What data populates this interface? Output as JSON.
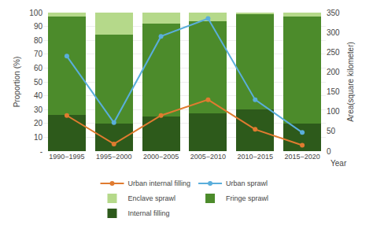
{
  "chart_data": {
    "type": "bar",
    "stacked": true,
    "categories": [
      "1990−1995",
      "1995−2000",
      "2000−2005",
      "2005−2010",
      "2010−2015",
      "2015−2020"
    ],
    "xlabel": "Year",
    "ylabel": "Proportion (%)",
    "y2label": "Area(square kilometer)",
    "ylim": [
      0,
      100
    ],
    "yticks": [
      {
        "value": 0,
        "label": "-"
      },
      10,
      20,
      30,
      40,
      50,
      60,
      70,
      80,
      90,
      100
    ],
    "y2lim": [
      0,
      350
    ],
    "y2ticks": [
      0,
      50,
      100,
      150,
      200,
      250,
      300,
      350
    ],
    "grid": true,
    "legend": "bottom",
    "series": [
      {
        "name": "Internal filling",
        "type": "bar",
        "color": "#2d5a1b",
        "values": [
          26,
          20,
          25,
          27,
          30,
          20
        ]
      },
      {
        "name": "Fringe sprawl",
        "type": "bar",
        "color": "#4c8b2b",
        "values": [
          71,
          64,
          67,
          67,
          69,
          77
        ]
      },
      {
        "name": "Enclave sprawl",
        "type": "bar",
        "color": "#b5d98a",
        "values": [
          3,
          16,
          8,
          6,
          1,
          3
        ]
      },
      {
        "name": "Urban sprawl",
        "type": "line",
        "axis": "y2",
        "marker": "circle",
        "color": "#5aaedb",
        "values": [
          240,
          72,
          290,
          335,
          130,
          47
        ]
      },
      {
        "name": "Urban internal filling",
        "type": "line",
        "axis": "y2",
        "marker": "circle",
        "color": "#e07b30",
        "values": [
          90,
          18,
          90,
          130,
          55,
          15
        ]
      }
    ]
  }
}
